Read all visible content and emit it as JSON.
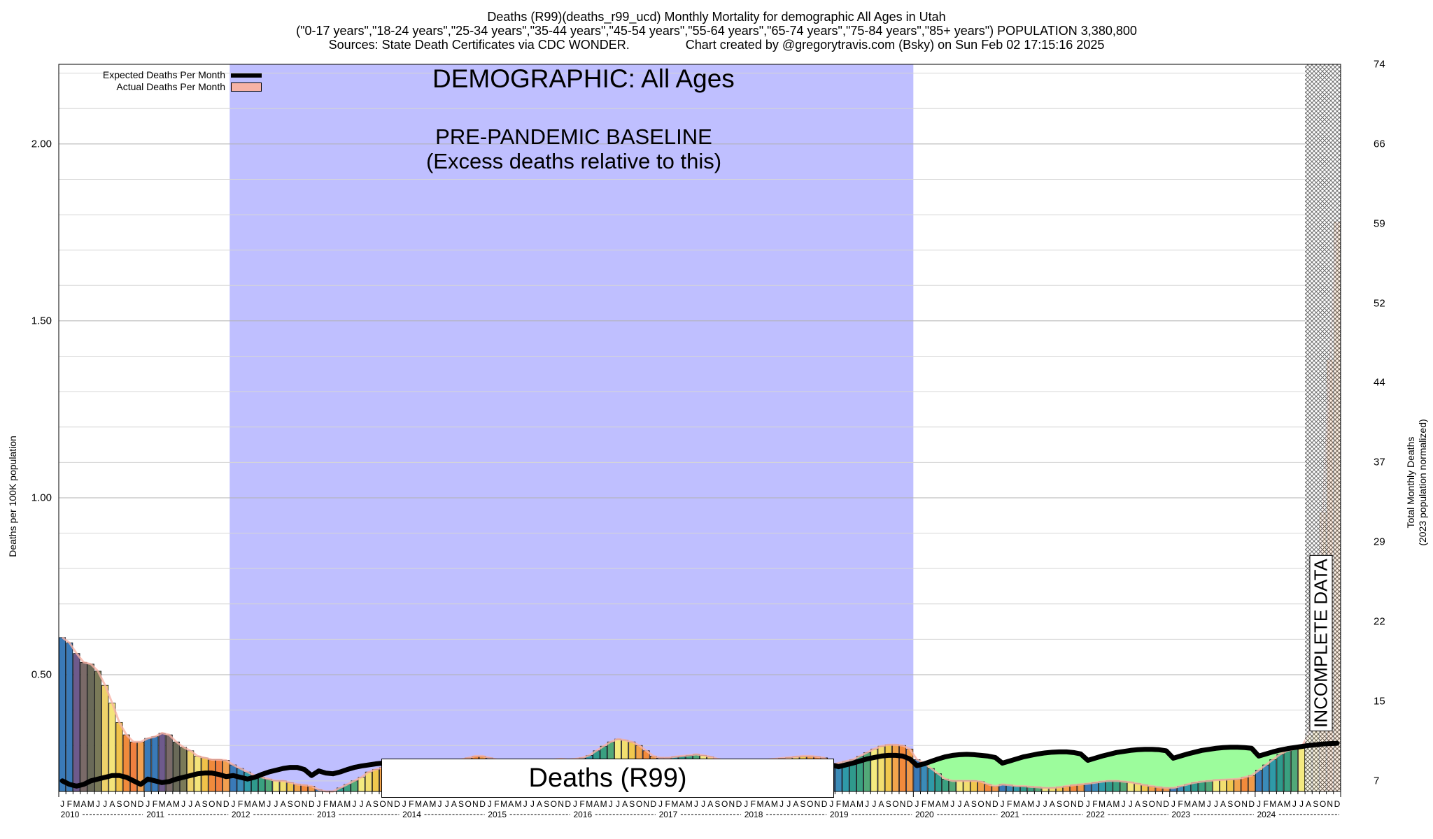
{
  "header": {
    "line1": "Deaths (R99)(deaths_r99_ucd) Monthly Mortality for demographic All Ages in Utah",
    "line2": "(\"0-17 years\",\"18-24 years\",\"25-34 years\",\"35-44 years\",\"45-54 years\",\"55-64 years\",\"65-74 years\",\"75-84 years\",\"85+ years\") POPULATION 3,380,800",
    "line3": "Sources: State Death Certificates via CDC WONDER.                Chart created by @gregorytravis.com (Bsky) on Sun Feb 02 17:15:16 2025"
  },
  "legend": {
    "expected": "Expected Deaths Per Month",
    "actual": "Actual Deaths Per Month"
  },
  "annotations": {
    "demographic": "DEMOGRAPHIC: All Ages",
    "baseline_1": "PRE-PANDEMIC BASELINE",
    "baseline_2": "(Excess deaths relative to this)",
    "cause_box": "Deaths (R99)",
    "incomplete": "INCOMPLETE DATA"
  },
  "axes": {
    "left_label": "Deaths per 100K population",
    "right_label_1": "Total Monthly Deaths",
    "right_label_2": "(2023 population normalized)",
    "left_ticks": [
      "0.50",
      "1.00",
      "1.50",
      "2.00"
    ],
    "left_tick_values": [
      0.5,
      1.0,
      1.5,
      2.0
    ],
    "right_ticks": [
      "7",
      "15",
      "22",
      "29",
      "37",
      "44",
      "52",
      "59",
      "66",
      "74"
    ],
    "right_tick_values": [
      0.2,
      0.425,
      0.65,
      0.875,
      1.1,
      1.325,
      1.55,
      1.775,
      2.0,
      2.225
    ],
    "month_letters": [
      "J",
      "F",
      "M",
      "A",
      "M",
      "J",
      "J",
      "A",
      "S",
      "O",
      "N",
      "D"
    ],
    "years": [
      "2010",
      "2011",
      "2012",
      "2013",
      "2014",
      "2015",
      "2016",
      "2017",
      "2018",
      "2019",
      "2020",
      "2021",
      "2022",
      "2023",
      "2024"
    ]
  },
  "colors": {
    "baseline_shade": "#bfbfff",
    "excess_fill": "#9cfc9c",
    "expected_line": "#000000",
    "actual_area": "#f7b3a6",
    "incomplete_fill": "#cfcfcf"
  },
  "chart_data": {
    "type": "bar",
    "title": "Deaths (R99)(deaths_r99_ucd) Monthly Mortality for demographic All Ages in Utah",
    "xlabel": "",
    "ylabel": "Deaths per 100K population",
    "ylim": [
      0.17,
      2.225
    ],
    "x_range": [
      "2010-01",
      "2024-12"
    ],
    "baseline_period": [
      "2012-01",
      "2019-12"
    ],
    "incomplete_from": "2024-08",
    "grid": true,
    "legend_position": "top-left",
    "series": [
      {
        "name": "Actual Deaths Per Month",
        "monthly_values": [
          0.605,
          0.59,
          0.56,
          0.535,
          0.53,
          0.51,
          0.47,
          0.42,
          0.365,
          0.33,
          0.31,
          0.31,
          0.32,
          0.325,
          0.335,
          0.33,
          0.31,
          0.295,
          0.285,
          0.27,
          0.265,
          0.26,
          0.26,
          0.258,
          0.245,
          0.235,
          0.225,
          0.215,
          0.21,
          0.205,
          0.2,
          0.2,
          0.195,
          0.19,
          0.188,
          0.185,
          0.175,
          0.17,
          0.17,
          0.18,
          0.19,
          0.2,
          0.21,
          0.225,
          0.232,
          0.238,
          0.24,
          0.24,
          0.24,
          0.24,
          0.242,
          0.242,
          0.245,
          0.245,
          0.25,
          0.255,
          0.26,
          0.265,
          0.27,
          0.27,
          0.265,
          0.26,
          0.255,
          0.25,
          0.248,
          0.25,
          0.252,
          0.255,
          0.258,
          0.26,
          0.262,
          0.26,
          0.262,
          0.265,
          0.272,
          0.285,
          0.298,
          0.31,
          0.318,
          0.315,
          0.31,
          0.3,
          0.285,
          0.27,
          0.265,
          0.265,
          0.268,
          0.27,
          0.272,
          0.275,
          0.272,
          0.268,
          0.262,
          0.258,
          0.255,
          0.255,
          0.255,
          0.256,
          0.258,
          0.26,
          0.262,
          0.264,
          0.266,
          0.268,
          0.27,
          0.27,
          0.268,
          0.265,
          0.245,
          0.25,
          0.255,
          0.26,
          0.27,
          0.28,
          0.29,
          0.298,
          0.302,
          0.302,
          0.3,
          0.29,
          0.26,
          0.25,
          0.235,
          0.22,
          0.205,
          0.2,
          0.2,
          0.2,
          0.2,
          0.198,
          0.19,
          0.185,
          0.19,
          0.188,
          0.185,
          0.185,
          0.183,
          0.182,
          0.18,
          0.18,
          0.182,
          0.185,
          0.188,
          0.19,
          0.192,
          0.195,
          0.198,
          0.2,
          0.2,
          0.198,
          0.196,
          0.192,
          0.188,
          0.185,
          0.182,
          0.18,
          0.18,
          0.185,
          0.19,
          0.195,
          0.198,
          0.2,
          0.202,
          0.203,
          0.204,
          0.205,
          0.21,
          0.215,
          0.23,
          0.245,
          0.26,
          0.275,
          0.285,
          0.29,
          0.295,
          0.33,
          0.54,
          0.96,
          1.39,
          1.78
        ]
      },
      {
        "name": "Expected Deaths Per Month",
        "monthly_values": [
          0.2,
          0.19,
          0.185,
          0.19,
          0.2,
          0.205,
          0.21,
          0.215,
          0.215,
          0.21,
          0.2,
          0.19,
          0.205,
          0.2,
          0.195,
          0.198,
          0.205,
          0.21,
          0.215,
          0.22,
          0.222,
          0.222,
          0.218,
          0.212,
          0.215,
          0.21,
          0.205,
          0.21,
          0.218,
          0.225,
          0.23,
          0.235,
          0.238,
          0.238,
          0.232,
          0.215,
          0.228,
          0.222,
          0.22,
          0.225,
          0.232,
          0.238,
          0.242,
          0.245,
          0.248,
          0.25,
          0.25,
          0.248,
          0.245,
          0.24,
          0.238,
          0.24,
          0.242,
          0.245,
          0.248,
          0.25,
          0.252,
          0.252,
          0.25,
          0.248,
          0.245,
          0.24,
          0.238,
          0.24,
          0.242,
          0.245,
          0.248,
          0.25,
          0.252,
          0.252,
          0.25,
          0.248,
          0.245,
          0.24,
          0.238,
          0.24,
          0.242,
          0.245,
          0.248,
          0.25,
          0.252,
          0.252,
          0.25,
          0.248,
          0.245,
          0.24,
          0.238,
          0.24,
          0.242,
          0.245,
          0.248,
          0.25,
          0.252,
          0.252,
          0.25,
          0.248,
          0.245,
          0.24,
          0.238,
          0.24,
          0.242,
          0.245,
          0.248,
          0.25,
          0.252,
          0.252,
          0.25,
          0.248,
          0.245,
          0.24,
          0.245,
          0.25,
          0.256,
          0.262,
          0.266,
          0.27,
          0.272,
          0.272,
          0.27,
          0.262,
          0.243,
          0.248,
          0.255,
          0.262,
          0.268,
          0.272,
          0.274,
          0.275,
          0.274,
          0.272,
          0.27,
          0.266,
          0.25,
          0.256,
          0.262,
          0.268,
          0.272,
          0.276,
          0.279,
          0.281,
          0.282,
          0.282,
          0.28,
          0.276,
          0.258,
          0.264,
          0.27,
          0.275,
          0.28,
          0.283,
          0.286,
          0.288,
          0.289,
          0.289,
          0.288,
          0.285,
          0.264,
          0.27,
          0.276,
          0.281,
          0.286,
          0.289,
          0.292,
          0.294,
          0.295,
          0.295,
          0.294,
          0.292,
          0.27,
          0.276,
          0.282,
          0.287,
          0.291,
          0.294,
          0.297,
          0.3,
          0.302,
          0.304,
          0.305,
          0.306
        ]
      }
    ]
  }
}
